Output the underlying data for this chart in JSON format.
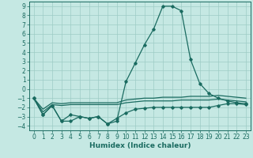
{
  "xlabel": "Humidex (Indice chaleur)",
  "xlim": [
    -0.5,
    23.5
  ],
  "ylim": [
    -4.5,
    9.5
  ],
  "xticks": [
    0,
    1,
    2,
    3,
    4,
    5,
    6,
    7,
    8,
    9,
    10,
    11,
    12,
    13,
    14,
    15,
    16,
    17,
    18,
    19,
    20,
    21,
    22,
    23
  ],
  "yticks": [
    -4,
    -3,
    -2,
    -1,
    0,
    1,
    2,
    3,
    4,
    5,
    6,
    7,
    8,
    9
  ],
  "bg_color": "#c5e8e3",
  "grid_color": "#9dccc5",
  "line_color": "#1a6b60",
  "line1_x": [
    0,
    1,
    2,
    3,
    4,
    5,
    6,
    7,
    8,
    9,
    10,
    11,
    12,
    13,
    14,
    15,
    16,
    17,
    18,
    19,
    20,
    21,
    22,
    23
  ],
  "line1_y": [
    -1.0,
    -2.8,
    -1.8,
    -3.5,
    -3.5,
    -3.0,
    -3.2,
    -3.0,
    -3.8,
    -3.2,
    -2.6,
    -2.2,
    -2.1,
    -2.0,
    -2.0,
    -2.0,
    -2.0,
    -2.0,
    -2.0,
    -2.0,
    -1.8,
    -1.6,
    -1.6,
    -1.7
  ],
  "line2_x": [
    0,
    1,
    2,
    3,
    4,
    5,
    6,
    7,
    8,
    9,
    10,
    11,
    12,
    13,
    14,
    15,
    16,
    17,
    18,
    19,
    20,
    21,
    22,
    23
  ],
  "line2_y": [
    -1.0,
    -2.5,
    -1.7,
    -1.8,
    -1.7,
    -1.7,
    -1.7,
    -1.7,
    -1.7,
    -1.7,
    -1.5,
    -1.4,
    -1.3,
    -1.3,
    -1.3,
    -1.3,
    -1.2,
    -1.2,
    -1.2,
    -1.2,
    -1.1,
    -1.2,
    -1.3,
    -1.4
  ],
  "line3_x": [
    0,
    1,
    2,
    3,
    4,
    5,
    6,
    7,
    8,
    9,
    10,
    11,
    12,
    13,
    14,
    15,
    16,
    17,
    18,
    19,
    20,
    21,
    22,
    23
  ],
  "line3_y": [
    -1.0,
    -2.2,
    -1.5,
    -1.6,
    -1.5,
    -1.5,
    -1.5,
    -1.5,
    -1.5,
    -1.5,
    -1.2,
    -1.1,
    -1.0,
    -1.0,
    -0.9,
    -0.9,
    -0.9,
    -0.8,
    -0.8,
    -0.8,
    -0.7,
    -0.8,
    -0.9,
    -1.0
  ],
  "line4_x": [
    0,
    1,
    2,
    3,
    4,
    5,
    6,
    7,
    8,
    9,
    10,
    11,
    12,
    13,
    14,
    15,
    16,
    17,
    18,
    19,
    20,
    21,
    22,
    23
  ],
  "line4_y": [
    -1.0,
    -2.8,
    -1.8,
    -3.5,
    -2.8,
    -3.0,
    -3.2,
    -3.0,
    -3.8,
    -3.5,
    0.8,
    2.8,
    4.8,
    6.5,
    9.0,
    9.0,
    8.5,
    3.2,
    0.6,
    -0.5,
    -1.0,
    -1.3,
    -1.5,
    -1.6
  ],
  "fontsize": 6.5,
  "tick_fontsize": 5.5
}
